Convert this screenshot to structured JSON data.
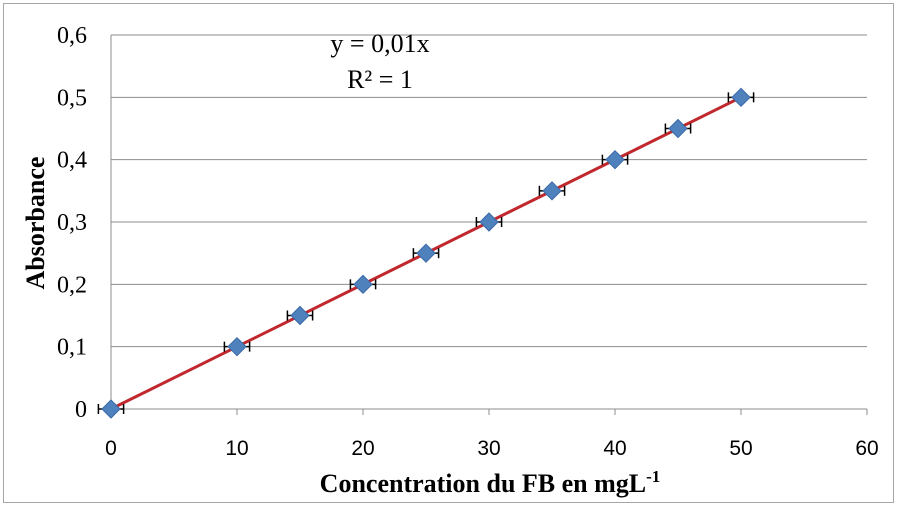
{
  "chart_data": {
    "type": "scatter",
    "x": [
      0,
      10,
      15,
      20,
      25,
      30,
      35,
      40,
      45,
      50
    ],
    "series": [
      {
        "values": [
          0,
          0.1,
          0.15,
          0.2,
          0.25,
          0.3,
          0.35,
          0.4,
          0.45,
          0.5
        ],
        "marker": "diamond",
        "color": "#4f81bd",
        "x_error": 1
      }
    ],
    "trendline": {
      "type": "linear",
      "slope": 0.01,
      "intercept": 0,
      "color": "#c0282d"
    },
    "annotations": [
      "y = 0,01x",
      "R² = 1"
    ],
    "xlabel": "Concentration du FB en mgL",
    "xlabel_superscript": "-1",
    "ylabel": "Absorbance",
    "xlim": [
      0,
      60
    ],
    "ylim": [
      0,
      0.6
    ],
    "x_ticks": [
      "0",
      "10",
      "20",
      "30",
      "40",
      "50",
      "60"
    ],
    "y_ticks": [
      "0",
      "0,1",
      "0,2",
      "0,3",
      "0,4",
      "0,5",
      "0,6"
    ],
    "grid": "horizontal",
    "legend": "none"
  }
}
